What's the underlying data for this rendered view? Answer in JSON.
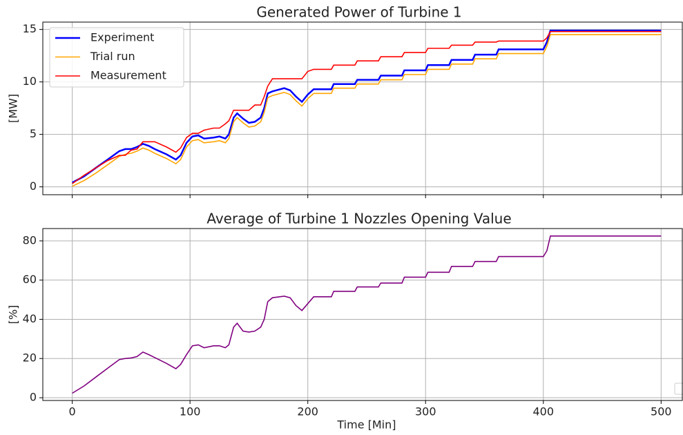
{
  "chart_data": [
    {
      "type": "line",
      "title": "Generated Power of Turbine 1",
      "ylabel": "[MW]",
      "x": [
        0,
        10,
        20,
        30,
        40,
        45,
        50,
        55,
        60,
        65,
        70,
        80,
        88,
        92,
        97,
        102,
        107,
        112,
        120,
        125,
        130,
        133,
        137,
        140,
        145,
        150,
        155,
        160,
        163,
        166,
        170,
        180,
        185,
        190,
        195,
        200,
        205,
        220,
        222,
        240,
        242,
        260,
        262,
        280,
        282,
        300,
        302,
        320,
        322,
        340,
        342,
        360,
        362,
        400,
        403,
        406,
        500
      ],
      "series": [
        {
          "name": "Experiment",
          "color": "#0000ff",
          "values": [
            0.4,
            1.0,
            1.8,
            2.6,
            3.4,
            3.6,
            3.6,
            3.8,
            4.1,
            3.9,
            3.6,
            3.1,
            2.6,
            3.0,
            4.2,
            4.8,
            4.9,
            4.6,
            4.7,
            4.8,
            4.6,
            5.0,
            6.6,
            7.0,
            6.5,
            6.1,
            6.2,
            6.6,
            7.5,
            8.9,
            9.1,
            9.4,
            9.2,
            8.6,
            8.1,
            8.8,
            9.3,
            9.3,
            9.8,
            9.8,
            10.2,
            10.2,
            10.6,
            10.6,
            11.1,
            11.1,
            11.6,
            11.6,
            12.1,
            12.1,
            12.6,
            12.6,
            13.1,
            13.1,
            13.8,
            14.9,
            14.9
          ]
        },
        {
          "name": "Trial run",
          "color": "#ffa500",
          "values": [
            0.05,
            0.6,
            1.3,
            2.1,
            2.9,
            3.1,
            3.2,
            3.4,
            3.7,
            3.5,
            3.2,
            2.7,
            2.2,
            2.6,
            3.8,
            4.4,
            4.5,
            4.2,
            4.3,
            4.4,
            4.2,
            4.6,
            6.2,
            6.6,
            6.1,
            5.7,
            5.8,
            6.2,
            7.1,
            8.5,
            8.7,
            9.0,
            8.8,
            8.2,
            7.7,
            8.4,
            8.9,
            8.9,
            9.4,
            9.4,
            9.8,
            9.8,
            10.2,
            10.2,
            10.7,
            10.7,
            11.2,
            11.2,
            11.7,
            11.7,
            12.2,
            12.2,
            12.7,
            12.7,
            13.4,
            14.5,
            14.5
          ]
        },
        {
          "name": "Measurement",
          "color": "#ff0000",
          "values": [
            0.3,
            1.1,
            1.8,
            2.5,
            3.0,
            3.0,
            3.5,
            3.6,
            4.3,
            4.3,
            4.3,
            3.8,
            3.3,
            3.7,
            4.7,
            5.1,
            5.1,
            5.4,
            5.6,
            5.6,
            6.0,
            6.3,
            7.3,
            7.3,
            7.3,
            7.3,
            7.8,
            7.8,
            8.6,
            9.6,
            10.3,
            10.3,
            10.3,
            10.3,
            10.3,
            11.0,
            11.2,
            11.2,
            11.6,
            11.6,
            12.0,
            12.0,
            12.4,
            12.4,
            12.8,
            12.8,
            13.2,
            13.2,
            13.5,
            13.5,
            13.8,
            13.8,
            13.9,
            13.9,
            14.2,
            14.8,
            14.8
          ]
        }
      ],
      "xlim": [
        -25,
        518
      ],
      "xticks": [
        0,
        100,
        200,
        300,
        400,
        500
      ],
      "ylim": [
        -0.75,
        15.7
      ],
      "yticks": [
        0,
        5,
        10,
        15
      ],
      "grid": true,
      "legend": "upper left"
    },
    {
      "type": "line",
      "title": "Average of Turbine 1 Nozzles Opening Value",
      "ylabel": "[%]",
      "xlabel": "Time [Min]",
      "x": [
        0,
        10,
        20,
        30,
        40,
        45,
        50,
        55,
        60,
        65,
        70,
        80,
        88,
        92,
        97,
        102,
        107,
        112,
        120,
        125,
        130,
        133,
        137,
        140,
        145,
        150,
        155,
        160,
        163,
        166,
        170,
        180,
        185,
        190,
        195,
        200,
        205,
        220,
        222,
        240,
        242,
        260,
        262,
        280,
        282,
        300,
        302,
        320,
        322,
        340,
        342,
        360,
        362,
        400,
        403,
        406,
        500
      ],
      "color": "#800080",
      "values": [
        2.3,
        6,
        10.5,
        15,
        19.5,
        20,
        20.3,
        21,
        23.3,
        22,
        20.5,
        17.5,
        14.8,
        17,
        22,
        26.5,
        27,
        25.5,
        26.5,
        26.5,
        25.5,
        27,
        36,
        38,
        34,
        33.5,
        34,
        36,
        40,
        49,
        51,
        51.8,
        51,
        47,
        44.5,
        48,
        51.5,
        51.5,
        54.3,
        54.3,
        56.5,
        56.5,
        58.5,
        58.5,
        61.5,
        61.5,
        64,
        64,
        67,
        67,
        69.5,
        69.5,
        72,
        72,
        75,
        82.5,
        82.5
      ],
      "xlim": [
        -25,
        518
      ],
      "xticks": [
        0,
        100,
        200,
        300,
        400,
        500
      ],
      "ylim": [
        -1.4,
        86.3
      ],
      "yticks": [
        0,
        20,
        40,
        60,
        80
      ],
      "grid": true
    }
  ]
}
